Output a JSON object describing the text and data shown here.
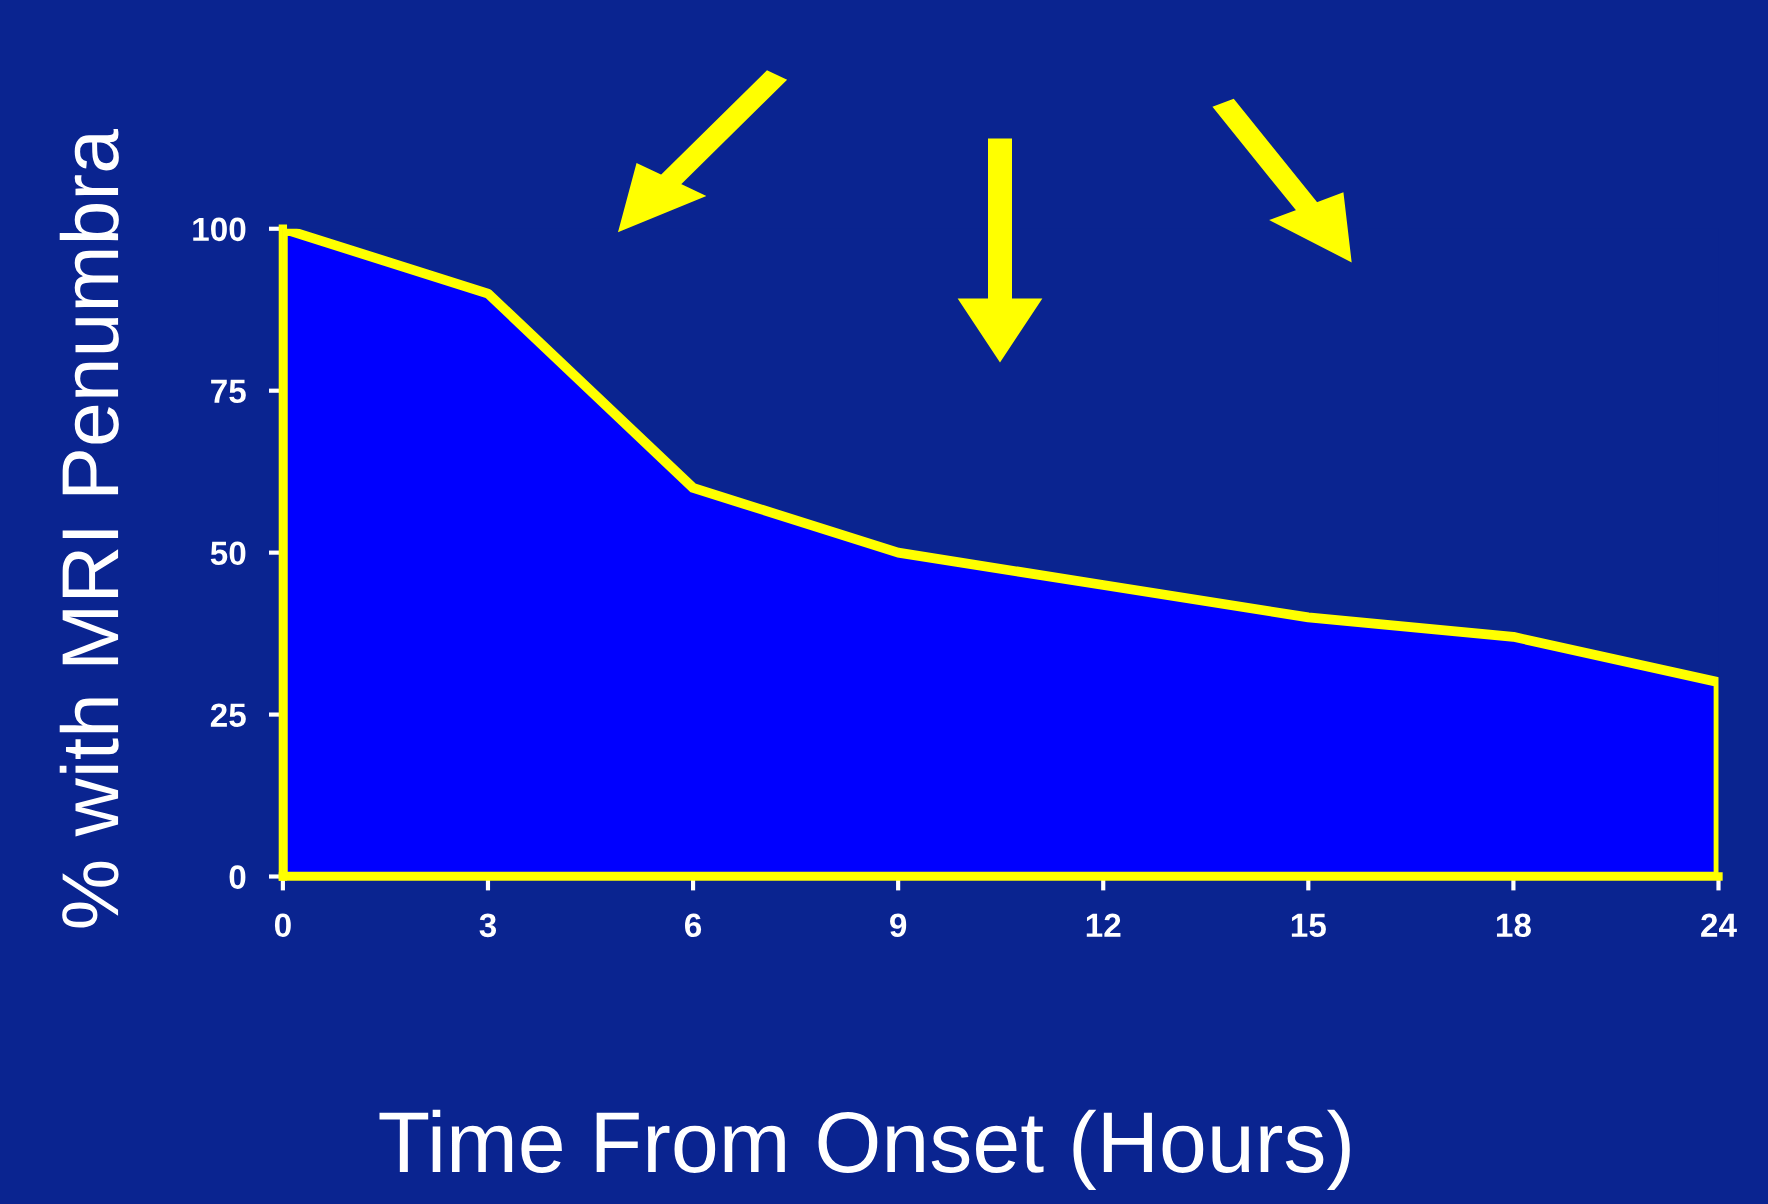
{
  "chart_data": {
    "type": "area",
    "xlabel": "Time From Onset (Hours)",
    "ylabel": "% with MRI Penumbra",
    "categories": [
      "0",
      "3",
      "6",
      "9",
      "12",
      "15",
      "18",
      "24"
    ],
    "series": [
      {
        "color": "#ffff00",
        "values": [
          100,
          90,
          60,
          50,
          45,
          40,
          37,
          30
        ]
      }
    ],
    "ylim": [
      0,
      100
    ],
    "yticks": [
      0,
      25,
      50,
      75,
      100
    ],
    "grid": false
  }
}
